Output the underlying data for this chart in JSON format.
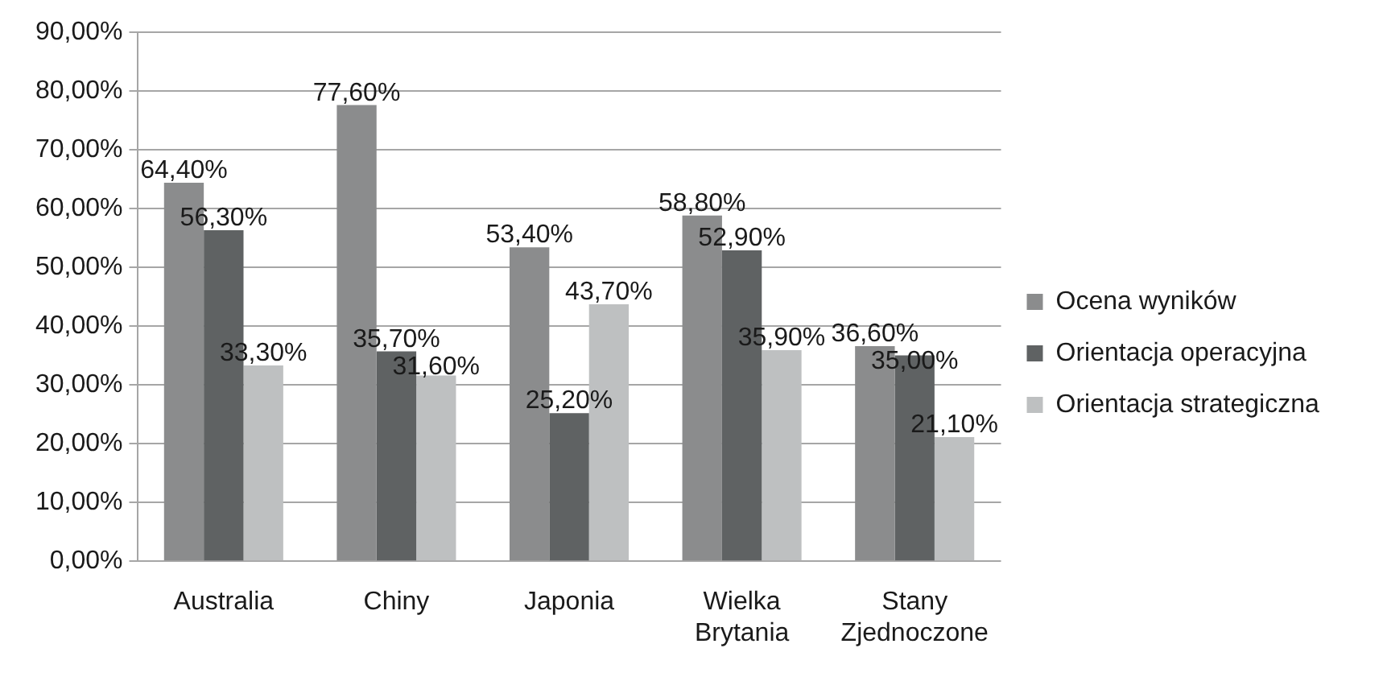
{
  "chart_data": {
    "type": "bar",
    "categories": [
      "Australia",
      "Chiny",
      "Japonia",
      "Wielka Brytania",
      "Stany Zjednoczone"
    ],
    "series": [
      {
        "name": "Ocena wyników",
        "color": "#8b8c8d",
        "values": [
          64.4,
          77.6,
          53.4,
          58.8,
          36.6
        ],
        "value_labels": [
          "64,40%",
          "77,60%",
          "53,40%",
          "58,80%",
          "36,60%"
        ]
      },
      {
        "name": "Orientacja operacyjna",
        "color": "#5f6263",
        "values": [
          56.3,
          35.7,
          25.2,
          52.9,
          35.0
        ],
        "value_labels": [
          "56,30%",
          "35,70%",
          "25,20%",
          "52,90%",
          "35,00%"
        ]
      },
      {
        "name": "Orientacja strategiczna",
        "color": "#bec0c1",
        "values": [
          33.3,
          31.6,
          43.7,
          35.9,
          21.1
        ],
        "value_labels": [
          "33,30%",
          "31,60%",
          "43,70%",
          "35,90%",
          "21,10%"
        ]
      }
    ],
    "ylim": [
      0,
      90
    ],
    "yticks": [
      {
        "value": 0,
        "label": "0,00%"
      },
      {
        "value": 10,
        "label": "10,00%"
      },
      {
        "value": 20,
        "label": "20,00%"
      },
      {
        "value": 30,
        "label": "30,00%"
      },
      {
        "value": 40,
        "label": "40,00%"
      },
      {
        "value": 50,
        "label": "50,00%"
      },
      {
        "value": 60,
        "label": "60,00%"
      },
      {
        "value": 70,
        "label": "70,00%"
      },
      {
        "value": 80,
        "label": "80,00%"
      },
      {
        "value": 90,
        "label": "90,00%"
      }
    ],
    "grid": "y",
    "legend": "right"
  }
}
